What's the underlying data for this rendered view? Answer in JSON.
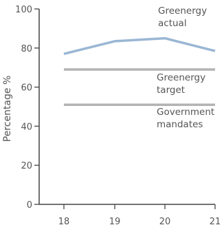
{
  "chart_data": {
    "type": "line",
    "ylabel": "Percentage %",
    "xlabel": "",
    "ylim": [
      0,
      100
    ],
    "yticks": [
      0,
      20,
      40,
      60,
      80,
      100
    ],
    "x": [
      "18",
      "19",
      "20",
      "21"
    ],
    "grid": false,
    "series": [
      {
        "key": "actual",
        "label_lines": [
          "Greenergy",
          "actual"
        ],
        "color": "#9ab6d4",
        "values": [
          77,
          83.5,
          85,
          78.5
        ]
      },
      {
        "key": "target",
        "label_lines": [
          "Greenergy",
          "target"
        ],
        "color": "#b3b3b3",
        "values": [
          69,
          69,
          69,
          69
        ]
      },
      {
        "key": "mandates",
        "label_lines": [
          "Government",
          "mandates"
        ],
        "color": "#b3b3b3",
        "values": [
          51,
          51,
          51,
          51
        ]
      }
    ],
    "axis_color": "#444444"
  }
}
